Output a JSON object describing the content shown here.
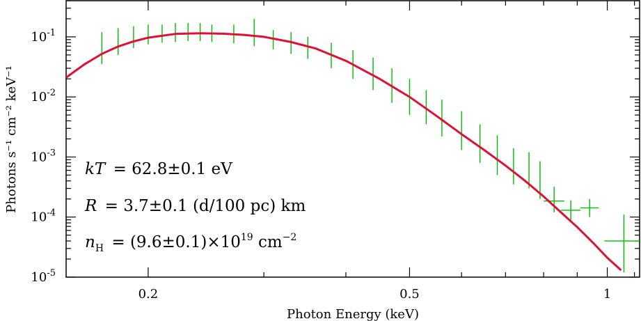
{
  "chart_data": {
    "type": "line",
    "xlabel": "Photon Energy (keV)",
    "ylabel": "Photons s⁻¹ cm⁻² keV⁻¹",
    "xscale": "log",
    "yscale": "log",
    "xlim": [
      0.15,
      1.12
    ],
    "ylim": [
      1e-05,
      0.4
    ],
    "x_ticks": [
      {
        "value": 0.2,
        "label": "0.2"
      },
      {
        "value": 0.5,
        "label": "0.5"
      },
      {
        "value": 1,
        "label": "1"
      }
    ],
    "y_ticks": [
      {
        "value": 1e-05,
        "base": "10",
        "exp": "-5"
      },
      {
        "value": 0.0001,
        "base": "10",
        "exp": "-4"
      },
      {
        "value": 0.001,
        "base": "10",
        "exp": "-3"
      },
      {
        "value": 0.01,
        "base": "10",
        "exp": "-2"
      },
      {
        "value": 0.1,
        "base": "10",
        "exp": "-1"
      }
    ],
    "series": [
      {
        "kind": "data",
        "color": "#00bb00",
        "points": [
          {
            "x": 0.17,
            "y": 0.062,
            "ylo": 0.035,
            "yhi": 0.12
          },
          {
            "x": 0.18,
            "y": 0.08,
            "ylo": 0.05,
            "yhi": 0.14
          },
          {
            "x": 0.19,
            "y": 0.095,
            "ylo": 0.065,
            "yhi": 0.15
          },
          {
            "x": 0.2,
            "y": 0.105,
            "ylo": 0.075,
            "yhi": 0.16
          },
          {
            "x": 0.21,
            "y": 0.11,
            "ylo": 0.08,
            "yhi": 0.16
          },
          {
            "x": 0.22,
            "y": 0.113,
            "ylo": 0.082,
            "yhi": 0.17
          },
          {
            "x": 0.23,
            "y": 0.115,
            "ylo": 0.085,
            "yhi": 0.17
          },
          {
            "x": 0.24,
            "y": 0.115,
            "ylo": 0.085,
            "yhi": 0.17
          },
          {
            "x": 0.25,
            "y": 0.113,
            "ylo": 0.082,
            "yhi": 0.16
          },
          {
            "x": 0.27,
            "y": 0.108,
            "ylo": 0.078,
            "yhi": 0.16
          },
          {
            "x": 0.29,
            "y": 0.1,
            "ylo": 0.07,
            "yhi": 0.2
          },
          {
            "x": 0.31,
            "y": 0.09,
            "ylo": 0.062,
            "yhi": 0.13
          },
          {
            "x": 0.33,
            "y": 0.078,
            "ylo": 0.052,
            "yhi": 0.12
          },
          {
            "x": 0.35,
            "y": 0.066,
            "ylo": 0.043,
            "yhi": 0.1
          },
          {
            "x": 0.38,
            "y": 0.05,
            "ylo": 0.03,
            "yhi": 0.08
          },
          {
            "x": 0.41,
            "y": 0.035,
            "ylo": 0.02,
            "yhi": 0.06
          },
          {
            "x": 0.44,
            "y": 0.024,
            "ylo": 0.013,
            "yhi": 0.045
          },
          {
            "x": 0.47,
            "y": 0.016,
            "ylo": 0.008,
            "yhi": 0.03
          },
          {
            "x": 0.5,
            "y": 0.0105,
            "ylo": 0.005,
            "yhi": 0.02
          },
          {
            "x": 0.53,
            "y": 0.0068,
            "ylo": 0.0035,
            "yhi": 0.013
          },
          {
            "x": 0.56,
            "y": 0.0045,
            "ylo": 0.0022,
            "yhi": 0.009
          },
          {
            "x": 0.6,
            "y": 0.0028,
            "ylo": 0.0013,
            "yhi": 0.0058
          },
          {
            "x": 0.64,
            "y": 0.0017,
            "ylo": 0.0008,
            "yhi": 0.0035
          },
          {
            "x": 0.68,
            "y": 0.0011,
            "ylo": 0.0005,
            "yhi": 0.0023
          },
          {
            "x": 0.72,
            "y": 0.0007,
            "ylo": 0.00035,
            "yhi": 0.0014
          },
          {
            "x": 0.76,
            "y": 0.00055,
            "ylo": 0.0003,
            "yhi": 0.0012
          },
          {
            "x": 0.79,
            "y": 0.00045,
            "ylo": 0.0002,
            "yhi": 0.00085
          },
          {
            "x": 0.83,
            "y": 0.000185,
            "ylo": 0.00012,
            "yhi": 0.00032,
            "xlo": 0.8,
            "xhi": 0.86
          },
          {
            "x": 0.88,
            "y": 0.00013,
            "ylo": 9e-05,
            "yhi": 0.00019,
            "xlo": 0.85,
            "xhi": 0.91
          },
          {
            "x": 0.94,
            "y": 0.000142,
            "ylo": 0.0001,
            "yhi": 0.0002,
            "xlo": 0.91,
            "xhi": 0.97
          },
          {
            "x": 1.06,
            "y": 4e-05,
            "ylo": 1.2e-05,
            "yhi": 0.00011,
            "xlo": 0.99,
            "xhi": 1.12
          }
        ]
      },
      {
        "kind": "model",
        "color": "#dd1133",
        "x": [
          0.15,
          0.16,
          0.17,
          0.18,
          0.19,
          0.2,
          0.22,
          0.24,
          0.26,
          0.28,
          0.3,
          0.33,
          0.36,
          0.4,
          0.45,
          0.5,
          0.55,
          0.6,
          0.65,
          0.7,
          0.75,
          0.8,
          0.85,
          0.9,
          0.95,
          1.0,
          1.05,
          1.1
        ],
        "y": [
          0.021,
          0.035,
          0.052,
          0.069,
          0.084,
          0.097,
          0.112,
          0.115,
          0.113,
          0.108,
          0.1,
          0.082,
          0.064,
          0.04,
          0.02,
          0.01,
          0.0048,
          0.0024,
          0.0013,
          0.00072,
          0.0004,
          0.00022,
          0.00012,
          6.8e-05,
          3.8e-05,
          2.1e-05,
          1.3e-05,
          9.5e-06
        ]
      }
    ],
    "annotations": [
      {
        "lhs": "kT",
        "text": "= 62.8±0.1 eV"
      },
      {
        "lhs": "R",
        "text": "= 3.7±0.1 (d/100 pc) km"
      },
      {
        "lhs": "n",
        "sub": "H",
        "text": "= (9.6±0.1)×10",
        "sup": "19",
        "tail": " cm",
        "tail_sup": "−2"
      }
    ]
  }
}
